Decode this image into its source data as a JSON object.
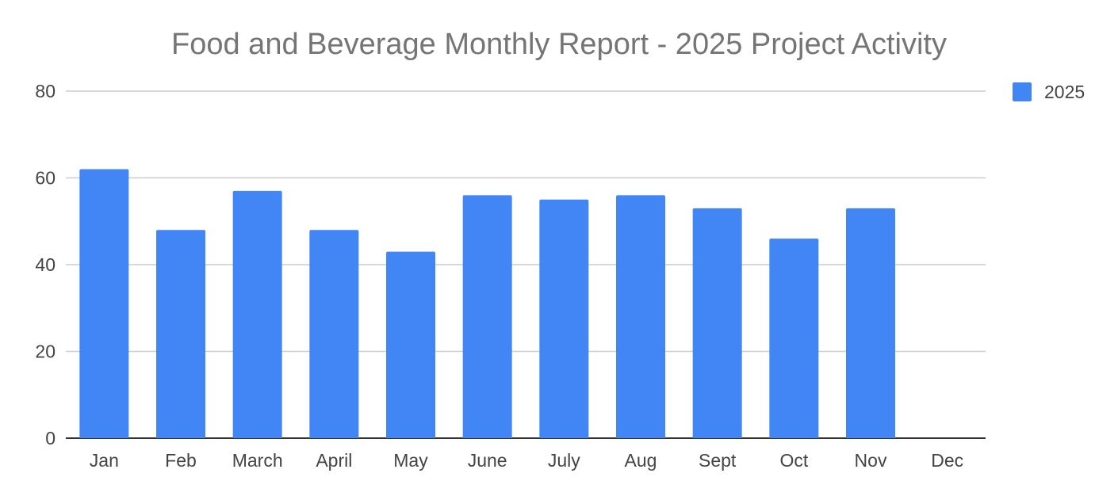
{
  "chart_data": {
    "type": "bar",
    "title": "Food and Beverage Monthly Report - 2025 Project Activity",
    "xlabel": "",
    "ylabel": "",
    "categories": [
      "Jan",
      "Feb",
      "March",
      "April",
      "May",
      "June",
      "July",
      "Aug",
      "Sept",
      "Oct",
      "Nov",
      "Dec"
    ],
    "series": [
      {
        "name": "2025",
        "values": [
          62,
          48,
          57,
          48,
          43,
          56,
          55,
          56,
          53,
          46,
          53,
          0
        ],
        "color": "#4285f4"
      }
    ],
    "ylim": [
      0,
      80
    ],
    "yticks": [
      0,
      20,
      40,
      60,
      80
    ],
    "grid": true,
    "legend_position": "right",
    "colors": {
      "gridline": "#cccccc",
      "baseline": "#333333",
      "title": "#757575",
      "tick_label": "#444444"
    }
  }
}
